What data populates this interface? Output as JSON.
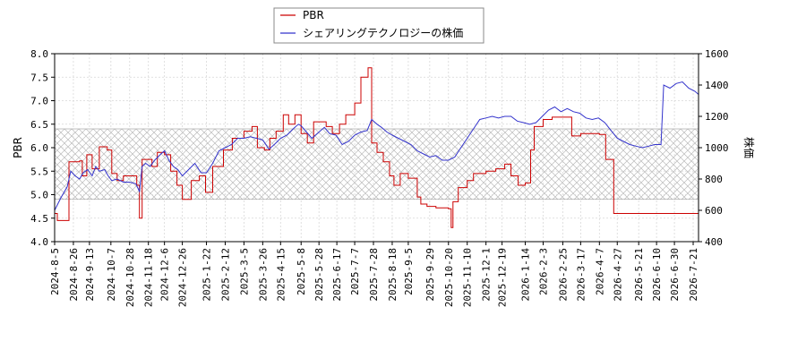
{
  "chart_data": {
    "type": "line",
    "legend": {
      "placement": "top-center"
    },
    "grid": true,
    "x_dates": [
      "2024-8-5",
      "2024-8-26",
      "2024-9-13",
      "2024-10-7",
      "2024-10-28",
      "2024-11-18",
      "2024-12-6",
      "2024-12-26",
      "2025-1-22",
      "2025-2-12",
      "2025-3-5",
      "2025-3-26",
      "2025-4-15",
      "2025-5-8",
      "2025-5-28",
      "2025-6-17",
      "2025-7-7",
      "2025-7-28",
      "2025-8-18",
      "2025-9-5",
      "2025-9-29",
      "2025-10-20",
      "2025-11-10",
      "2025-12-1",
      "2025-12-19",
      "2026-1-14",
      "2026-2-3",
      "2026-2-25",
      "2026-3-17",
      "2026-4-7",
      "2026-4-27",
      "2026-5-21",
      "2026-6-10",
      "2026-6-30",
      "2026-7-21"
    ],
    "y_left": {
      "label": "PBR",
      "ticks": [
        "4.0",
        "4.5",
        "5.0",
        "5.5",
        "6.0",
        "6.5",
        "7.0",
        "7.5",
        "8.0"
      ],
      "ylim": [
        4.0,
        8.0
      ]
    },
    "y_right": {
      "label": "株価",
      "ticks": [
        "400",
        "600",
        "800",
        "1000",
        "1200",
        "1400",
        "1600"
      ],
      "ylim": [
        400,
        1600
      ]
    },
    "shaded_band": {
      "axis": "left",
      "range": [
        4.9,
        6.4
      ],
      "pattern": "crosshatch"
    },
    "series": [
      {
        "name": "PBR",
        "axis": "left",
        "color": "#cc0000",
        "step": true,
        "points": [
          [
            "2024-8-5",
            4.6
          ],
          [
            "2024-8-8",
            4.45
          ],
          [
            "2024-8-19",
            4.45
          ],
          [
            "2024-8-21",
            5.7
          ],
          [
            "2024-9-2",
            5.72
          ],
          [
            "2024-9-5",
            5.4
          ],
          [
            "2024-9-10",
            5.85
          ],
          [
            "2024-9-16",
            5.55
          ],
          [
            "2024-9-24",
            6.02
          ],
          [
            "2024-10-3",
            5.95
          ],
          [
            "2024-10-8",
            5.45
          ],
          [
            "2024-10-14",
            5.3
          ],
          [
            "2024-10-21",
            5.4
          ],
          [
            "2024-11-5",
            5.2
          ],
          [
            "2024-11-8",
            4.5
          ],
          [
            "2024-11-11",
            5.75
          ],
          [
            "2024-11-22",
            5.6
          ],
          [
            "2024-11-28",
            5.9
          ],
          [
            "2024-12-6",
            5.85
          ],
          [
            "2024-12-13",
            5.5
          ],
          [
            "2024-12-20",
            5.2
          ],
          [
            "2024-12-26",
            4.9
          ],
          [
            "2025-1-5",
            5.3
          ],
          [
            "2025-1-14",
            5.4
          ],
          [
            "2025-1-21",
            5.05
          ],
          [
            "2025-1-29",
            5.6
          ],
          [
            "2025-2-10",
            5.95
          ],
          [
            "2025-2-20",
            6.2
          ],
          [
            "2025-3-5",
            6.35
          ],
          [
            "2025-3-14",
            6.45
          ],
          [
            "2025-3-20",
            6.0
          ],
          [
            "2025-3-28",
            5.95
          ],
          [
            "2025-4-3",
            6.2
          ],
          [
            "2025-4-10",
            6.35
          ],
          [
            "2025-4-18",
            6.7
          ],
          [
            "2025-4-24",
            6.5
          ],
          [
            "2025-5-1",
            6.7
          ],
          [
            "2025-5-8",
            6.3
          ],
          [
            "2025-5-15",
            6.1
          ],
          [
            "2025-5-22",
            6.55
          ],
          [
            "2025-6-5",
            6.45
          ],
          [
            "2025-6-12",
            6.3
          ],
          [
            "2025-6-20",
            6.5
          ],
          [
            "2025-6-27",
            6.7
          ],
          [
            "2025-7-7",
            6.95
          ],
          [
            "2025-7-14",
            7.5
          ],
          [
            "2025-7-22",
            7.7
          ],
          [
            "2025-7-26",
            6.1
          ],
          [
            "2025-8-1",
            5.9
          ],
          [
            "2025-8-8",
            5.7
          ],
          [
            "2025-8-15",
            5.4
          ],
          [
            "2025-8-20",
            5.2
          ],
          [
            "2025-8-27",
            5.45
          ],
          [
            "2025-9-5",
            5.35
          ],
          [
            "2025-9-15",
            4.95
          ],
          [
            "2025-9-19",
            4.8
          ],
          [
            "2025-9-26",
            4.75
          ],
          [
            "2025-10-6",
            4.72
          ],
          [
            "2025-10-20",
            4.7
          ],
          [
            "2025-10-23",
            4.3
          ],
          [
            "2025-10-25",
            4.85
          ],
          [
            "2025-10-31",
            5.15
          ],
          [
            "2025-11-10",
            5.3
          ],
          [
            "2025-11-17",
            5.45
          ],
          [
            "2025-12-1",
            5.5
          ],
          [
            "2025-12-12",
            5.55
          ],
          [
            "2025-12-22",
            5.65
          ],
          [
            "2025-12-29",
            5.4
          ],
          [
            "2026-1-6",
            5.2
          ],
          [
            "2026-1-14",
            5.25
          ],
          [
            "2026-1-20",
            5.95
          ],
          [
            "2026-1-24",
            6.45
          ],
          [
            "2026-2-3",
            6.6
          ],
          [
            "2026-2-13",
            6.65
          ],
          [
            "2026-3-1",
            6.65
          ],
          [
            "2026-3-7",
            6.25
          ],
          [
            "2026-3-17",
            6.3
          ],
          [
            "2026-4-7",
            6.28
          ],
          [
            "2026-4-14",
            5.75
          ],
          [
            "2026-4-23",
            4.6
          ],
          [
            "2026-6-10",
            4.6
          ],
          [
            "2026-7-27",
            4.6
          ]
        ]
      },
      {
        "name": "シェアリングテクノロジーの株価",
        "axis": "right",
        "color": "#3333cc",
        "step": false,
        "points": [
          [
            "2024-8-5",
            600
          ],
          [
            "2024-8-12",
            680
          ],
          [
            "2024-8-19",
            750
          ],
          [
            "2024-8-23",
            850
          ],
          [
            "2024-8-28",
            820
          ],
          [
            "2024-9-2",
            800
          ],
          [
            "2024-9-6",
            840
          ],
          [
            "2024-9-11",
            860
          ],
          [
            "2024-9-16",
            820
          ],
          [
            "2024-9-20",
            880
          ],
          [
            "2024-9-24",
            850
          ],
          [
            "2024-9-30",
            860
          ],
          [
            "2024-10-4",
            820
          ],
          [
            "2024-10-8",
            790
          ],
          [
            "2024-10-14",
            800
          ],
          [
            "2024-10-21",
            780
          ],
          [
            "2024-10-28",
            780
          ],
          [
            "2024-11-4",
            770
          ],
          [
            "2024-11-8",
            720
          ],
          [
            "2024-11-11",
            880
          ],
          [
            "2024-11-15",
            900
          ],
          [
            "2024-11-20",
            880
          ],
          [
            "2024-11-25",
            920
          ],
          [
            "2024-12-2",
            960
          ],
          [
            "2024-12-6",
            980
          ],
          [
            "2024-12-11",
            920
          ],
          [
            "2024-12-16",
            880
          ],
          [
            "2024-12-21",
            860
          ],
          [
            "2024-12-26",
            820
          ],
          [
            "2025-1-2",
            860
          ],
          [
            "2025-1-9",
            900
          ],
          [
            "2025-1-16",
            840
          ],
          [
            "2025-1-22",
            840
          ],
          [
            "2025-1-29",
            900
          ],
          [
            "2025-2-5",
            980
          ],
          [
            "2025-2-12",
            1000
          ],
          [
            "2025-2-19",
            1020
          ],
          [
            "2025-2-26",
            1060
          ],
          [
            "2025-3-5",
            1060
          ],
          [
            "2025-3-12",
            1070
          ],
          [
            "2025-3-19",
            1060
          ],
          [
            "2025-3-26",
            1050
          ],
          [
            "2025-4-2",
            990
          ],
          [
            "2025-4-8",
            1020
          ],
          [
            "2025-4-15",
            1060
          ],
          [
            "2025-4-22",
            1080
          ],
          [
            "2025-4-29",
            1120
          ],
          [
            "2025-5-5",
            1150
          ],
          [
            "2025-5-8",
            1140
          ],
          [
            "2025-5-14",
            1100
          ],
          [
            "2025-5-20",
            1060
          ],
          [
            "2025-5-26",
            1090
          ],
          [
            "2025-6-3",
            1130
          ],
          [
            "2025-6-9",
            1090
          ],
          [
            "2025-6-16",
            1080
          ],
          [
            "2025-6-23",
            1020
          ],
          [
            "2025-6-30",
            1040
          ],
          [
            "2025-7-7",
            1080
          ],
          [
            "2025-7-14",
            1100
          ],
          [
            "2025-7-21",
            1110
          ],
          [
            "2025-7-26",
            1180
          ],
          [
            "2025-8-1",
            1150
          ],
          [
            "2025-8-6",
            1130
          ],
          [
            "2025-8-12",
            1100
          ],
          [
            "2025-8-18",
            1080
          ],
          [
            "2025-8-25",
            1060
          ],
          [
            "2025-9-1",
            1040
          ],
          [
            "2025-9-8",
            1020
          ],
          [
            "2025-9-15",
            980
          ],
          [
            "2025-9-22",
            960
          ],
          [
            "2025-9-29",
            940
          ],
          [
            "2025-10-6",
            950
          ],
          [
            "2025-10-13",
            920
          ],
          [
            "2025-10-20",
            920
          ],
          [
            "2025-10-27",
            940
          ],
          [
            "2025-11-3",
            1000
          ],
          [
            "2025-11-10",
            1060
          ],
          [
            "2025-11-17",
            1120
          ],
          [
            "2025-11-24",
            1180
          ],
          [
            "2025-12-1",
            1190
          ],
          [
            "2025-12-8",
            1200
          ],
          [
            "2025-12-15",
            1190
          ],
          [
            "2025-12-22",
            1200
          ],
          [
            "2025-12-29",
            1200
          ],
          [
            "2026-1-5",
            1170
          ],
          [
            "2026-1-12",
            1160
          ],
          [
            "2026-1-19",
            1150
          ],
          [
            "2026-1-26",
            1160
          ],
          [
            "2026-2-2",
            1200
          ],
          [
            "2026-2-9",
            1240
          ],
          [
            "2026-2-16",
            1260
          ],
          [
            "2026-2-23",
            1230
          ],
          [
            "2026-3-2",
            1250
          ],
          [
            "2026-3-9",
            1230
          ],
          [
            "2026-3-16",
            1220
          ],
          [
            "2026-3-23",
            1190
          ],
          [
            "2026-3-30",
            1180
          ],
          [
            "2026-4-6",
            1190
          ],
          [
            "2026-4-13",
            1160
          ],
          [
            "2026-4-20",
            1110
          ],
          [
            "2026-4-27",
            1060
          ],
          [
            "2026-5-4",
            1040
          ],
          [
            "2026-5-11",
            1020
          ],
          [
            "2026-5-18",
            1010
          ],
          [
            "2026-5-25",
            1000
          ],
          [
            "2026-6-1",
            1010
          ],
          [
            "2026-6-8",
            1020
          ],
          [
            "2026-6-15",
            1020
          ],
          [
            "2026-6-18",
            1400
          ],
          [
            "2026-6-25",
            1380
          ],
          [
            "2026-7-2",
            1410
          ],
          [
            "2026-7-9",
            1420
          ],
          [
            "2026-7-16",
            1380
          ],
          [
            "2026-7-23",
            1360
          ],
          [
            "2026-7-27",
            1340
          ]
        ]
      }
    ]
  }
}
